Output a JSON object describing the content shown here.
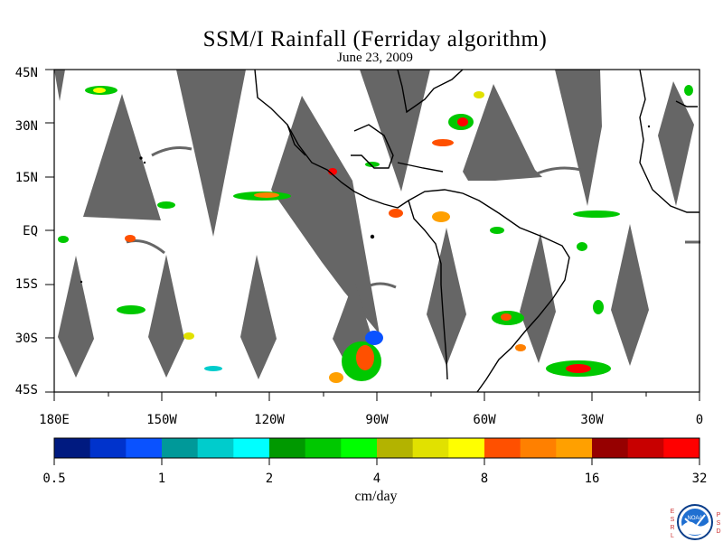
{
  "title": "SSM/I Rainfall (Ferriday algorithm)",
  "subtitle": "June 23, 2009",
  "map": {
    "lat_labels": [
      "45N",
      "30N",
      "15N",
      "EQ",
      "15S",
      "30S",
      "45S"
    ],
    "lon_labels": [
      "180E",
      "150W",
      "120W",
      "90W",
      "60W",
      "30W",
      "0"
    ],
    "lat_range": [
      -45,
      45
    ],
    "lon_range": [
      -180,
      0
    ],
    "missing_color": "#666666",
    "coastline_color": "#000000"
  },
  "colorbar": {
    "unit": "cm/day",
    "tick_labels": [
      "0.5",
      "1",
      "2",
      "4",
      "8",
      "16",
      "32"
    ],
    "colors": [
      "#001a80",
      "#0033cc",
      "#0a52ff",
      "#009999",
      "#00cccc",
      "#00ffff",
      "#009900",
      "#00c800",
      "#00ff00",
      "#b3b300",
      "#e1e100",
      "#ffff00",
      "#ff5000",
      "#ff8000",
      "#ffa000",
      "#960000",
      "#c80000",
      "#ff0000"
    ]
  },
  "logo": {
    "name": "noaa-logo",
    "text": "NOAA",
    "left_letters": [
      "E",
      "S",
      "R",
      "L"
    ],
    "right_letters": [
      "P",
      "S",
      "D"
    ]
  }
}
